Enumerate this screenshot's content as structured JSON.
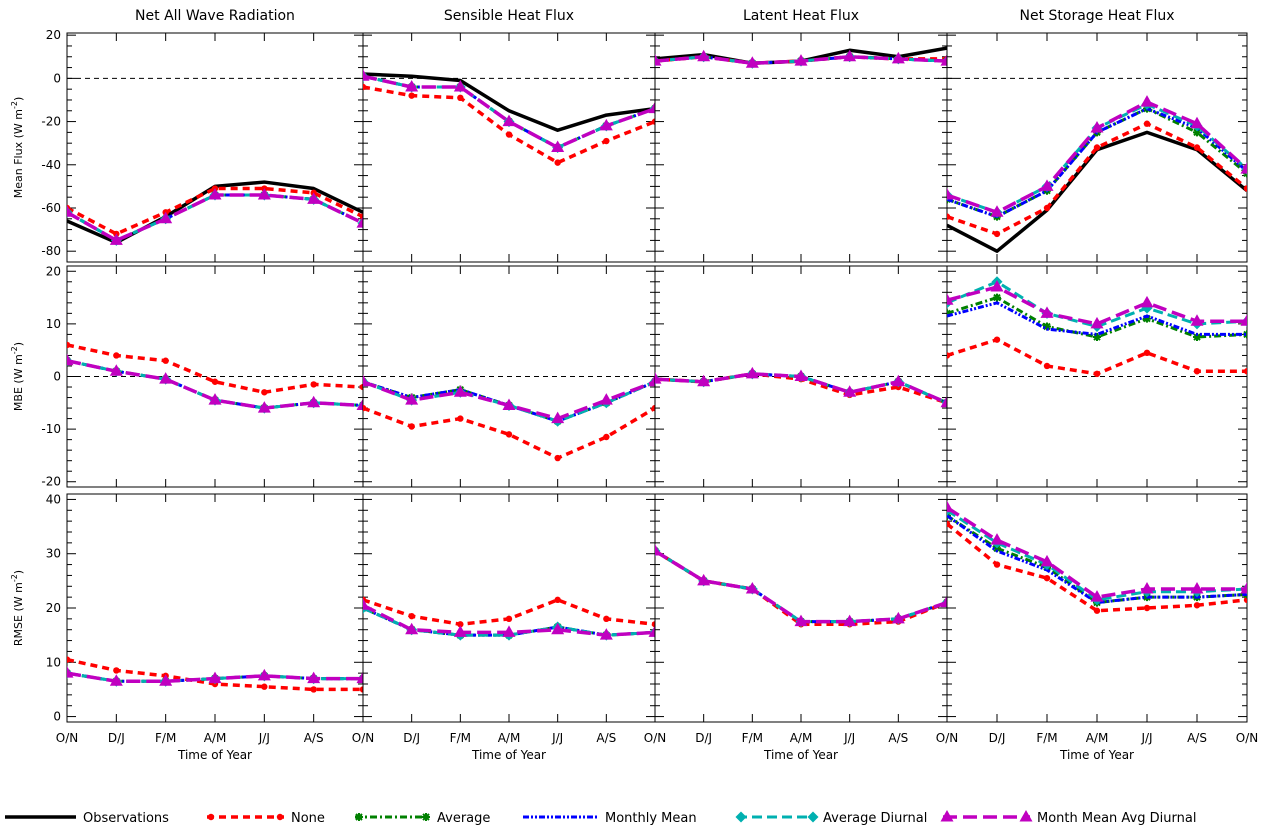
{
  "columns": [
    "Net All Wave Radiation",
    "Sensible Heat Flux",
    "Latent Heat Flux",
    "Net Storage Heat Flux"
  ],
  "rows": [
    {
      "ylabel_main": "Mean Flux (W m",
      "ylabel_sup": "-2",
      "ylabel_tail": ")",
      "ylim": [
        -85,
        21
      ],
      "yticks": [
        20,
        0,
        -20,
        -40,
        -60,
        -80
      ],
      "zero_line": true
    },
    {
      "ylabel_main": "MBE (W m",
      "ylabel_sup": "-2",
      "ylabel_tail": ")",
      "ylim": [
        -21,
        21
      ],
      "yticks": [
        20,
        10,
        0,
        -10,
        -20
      ],
      "zero_line": true
    },
    {
      "ylabel_main": "RMSE (W m",
      "ylabel_sup": "-2",
      "ylabel_tail": ")",
      "ylim": [
        -1,
        41
      ],
      "yticks": [
        40,
        30,
        20,
        10,
        0
      ],
      "zero_line": false
    }
  ],
  "xticks": [
    "O/N",
    "D/J",
    "F/M",
    "A/M",
    "J/J",
    "A/S",
    "O/N"
  ],
  "xlabel": "Time of Year",
  "legend": [
    {
      "key": "obs",
      "label": "Observations",
      "color": "#000000",
      "dash": "",
      "marker": "none",
      "width": 3.5
    },
    {
      "key": "none",
      "label": "None",
      "color": "#ff0000",
      "dash": "7,5",
      "marker": "circle",
      "width": 3.5
    },
    {
      "key": "avg",
      "label": "Average",
      "color": "#008000",
      "dash": "7,3,2,3",
      "marker": "star",
      "width": 3
    },
    {
      "key": "mm",
      "label": "Monthly Mean",
      "color": "#0000ff",
      "dash": "6,2,2,2,2,2",
      "marker": "none",
      "width": 3
    },
    {
      "key": "ad",
      "label": "Average Diurnal",
      "color": "#00b0b0",
      "dash": "10,5",
      "marker": "diamond",
      "width": 3
    },
    {
      "key": "mmad",
      "label": "Month Mean Avg Diurnal",
      "color": "#c000c0",
      "dash": "14,6",
      "marker": "triangle",
      "width": 3.5
    }
  ],
  "chart_data": {
    "type": "line",
    "x": [
      "O/N",
      "D/J",
      "F/M",
      "A/M",
      "J/J",
      "A/S",
      "O/N"
    ],
    "xlabel": "Time of Year",
    "series_names": [
      "Observations",
      "None",
      "Average",
      "Monthly Mean",
      "Average Diurnal",
      "Month Mean Avg Diurnal"
    ],
    "panels": [
      {
        "row": 0,
        "col": 0,
        "title": "Net All Wave Radiation",
        "ylabel": "Mean Flux (W m-2)",
        "ylim": [
          -85,
          21
        ],
        "series": {
          "obs": [
            -66,
            -76,
            -64,
            -50,
            -48,
            -51,
            -62
          ],
          "none": [
            -60,
            -72,
            -62,
            -51,
            -51,
            -53,
            -64
          ],
          "avg": [
            -62,
            -75,
            -65,
            -54,
            -54,
            -56,
            -67
          ],
          "mm": [
            -62,
            -75,
            -65,
            -54,
            -54,
            -56,
            -67
          ],
          "ad": [
            -62,
            -75,
            -65,
            -54,
            -54,
            -56,
            -67
          ],
          "mmad": [
            -62,
            -75,
            -65,
            -54,
            -54,
            -56,
            -67
          ]
        }
      },
      {
        "row": 0,
        "col": 1,
        "title": "Sensible Heat Flux",
        "ylabel": "Mean Flux (W m-2)",
        "ylim": [
          -85,
          21
        ],
        "series": {
          "obs": [
            2,
            1,
            -1,
            -15,
            -24,
            -17,
            -14
          ],
          "none": [
            -4,
            -8,
            -9,
            -26,
            -39,
            -29,
            -20
          ],
          "avg": [
            1,
            -4,
            -4,
            -20,
            -32,
            -22,
            -14
          ],
          "mm": [
            1,
            -4,
            -4,
            -20,
            -32,
            -22,
            -14
          ],
          "ad": [
            1,
            -4,
            -4,
            -20,
            -32,
            -22,
            -14
          ],
          "mmad": [
            1,
            -4,
            -4,
            -20,
            -32,
            -22,
            -14
          ]
        }
      },
      {
        "row": 0,
        "col": 2,
        "title": "Latent Heat Flux",
        "ylabel": "Mean Flux (W m-2)",
        "ylim": [
          -85,
          21
        ],
        "series": {
          "obs": [
            9,
            11,
            7,
            8,
            13,
            10,
            14
          ],
          "none": [
            8,
            10,
            7,
            8,
            10,
            9,
            9
          ],
          "avg": [
            8,
            10,
            7,
            8,
            10,
            9,
            8
          ],
          "mm": [
            8,
            10,
            7,
            8,
            10,
            9,
            8
          ],
          "ad": [
            8,
            10,
            7,
            8,
            10,
            9,
            8
          ],
          "mmad": [
            8,
            10,
            7,
            8,
            10,
            9,
            8
          ]
        }
      },
      {
        "row": 0,
        "col": 3,
        "title": "Net Storage Heat Flux",
        "ylabel": "Mean Flux (W m-2)",
        "ylim": [
          -85,
          21
        ],
        "series": {
          "obs": [
            -68,
            -80,
            -61,
            -33,
            -25,
            -33,
            -52
          ],
          "none": [
            -64,
            -72,
            -60,
            -32,
            -21,
            -32,
            -51
          ],
          "avg": [
            -56,
            -64,
            -52,
            -25,
            -14,
            -25,
            -44
          ],
          "mm": [
            -56,
            -64,
            -52,
            -25,
            -14,
            -23,
            -43
          ],
          "ad": [
            -54,
            -62,
            -50,
            -23,
            -12,
            -22,
            -42
          ],
          "mmad": [
            -54,
            -62,
            -50,
            -23,
            -11,
            -21,
            -42
          ]
        }
      },
      {
        "row": 1,
        "col": 0,
        "title": "Net All Wave Radiation",
        "ylabel": "MBE (W m-2)",
        "ylim": [
          -21,
          21
        ],
        "series": {
          "none": [
            6,
            4,
            3,
            -1,
            -3,
            -1.5,
            -2
          ],
          "avg": [
            3,
            1,
            -0.5,
            -4.5,
            -6,
            -5,
            -5.5
          ],
          "mm": [
            3,
            1,
            -0.5,
            -4.5,
            -6,
            -5,
            -5.5
          ],
          "ad": [
            3,
            1,
            -0.5,
            -4.5,
            -6,
            -5,
            -5.5
          ],
          "mmad": [
            3,
            1,
            -0.5,
            -4.5,
            -6,
            -5,
            -5.5
          ]
        }
      },
      {
        "row": 1,
        "col": 1,
        "title": "Sensible Heat Flux",
        "ylabel": "MBE (W m-2)",
        "ylim": [
          -21,
          21
        ],
        "series": {
          "none": [
            -6,
            -9.5,
            -8,
            -11,
            -15.5,
            -11.5,
            -6
          ],
          "avg": [
            -1,
            -4,
            -2.5,
            -5.5,
            -8.5,
            -5,
            -1
          ],
          "mm": [
            -1,
            -4,
            -2.5,
            -5.5,
            -8.5,
            -5,
            -1
          ],
          "ad": [
            -1,
            -4.5,
            -3,
            -5.5,
            -8.5,
            -5,
            -1
          ],
          "mmad": [
            -1,
            -4.5,
            -3,
            -5.5,
            -8,
            -4.5,
            -1
          ]
        }
      },
      {
        "row": 1,
        "col": 2,
        "title": "Latent Heat Flux",
        "ylabel": "MBE (W m-2)",
        "ylim": [
          -21,
          21
        ],
        "series": {
          "none": [
            -0.5,
            -1,
            0.5,
            -0.5,
            -3.5,
            -2,
            -5
          ],
          "avg": [
            -0.5,
            -1,
            0.5,
            0,
            -3,
            -1,
            -5
          ],
          "mm": [
            -0.5,
            -1,
            0.5,
            0,
            -3,
            -1,
            -5
          ],
          "ad": [
            -0.5,
            -1,
            0.5,
            0,
            -3,
            -1,
            -5
          ],
          "mmad": [
            -0.5,
            -1,
            0.5,
            0,
            -3,
            -1,
            -5
          ]
        }
      },
      {
        "row": 1,
        "col": 3,
        "title": "Net Storage Heat Flux",
        "ylabel": "MBE (W m-2)",
        "ylim": [
          -21,
          21
        ],
        "series": {
          "none": [
            4,
            7,
            2,
            0.5,
            4.5,
            1,
            1
          ],
          "avg": [
            12,
            15,
            9.5,
            7.5,
            11,
            7.5,
            8
          ],
          "mm": [
            11.5,
            14,
            9,
            8,
            11.5,
            8,
            8
          ],
          "ad": [
            14,
            18,
            12,
            9.5,
            13,
            10,
            10.5
          ],
          "mmad": [
            14.5,
            17,
            12,
            10,
            14,
            10.5,
            10.5
          ]
        }
      },
      {
        "row": 2,
        "col": 0,
        "title": "Net All Wave Radiation",
        "ylabel": "RMSE (W m-2)",
        "ylim": [
          -1,
          41
        ],
        "series": {
          "none": [
            10.5,
            8.5,
            7.5,
            6,
            5.5,
            5,
            5
          ],
          "avg": [
            8,
            6.5,
            6.5,
            7,
            7.5,
            7,
            7
          ],
          "mm": [
            8,
            6.5,
            6.5,
            7,
            7.5,
            7,
            7
          ],
          "ad": [
            8,
            6.5,
            6.5,
            7,
            7.5,
            7,
            7
          ],
          "mmad": [
            8,
            6.5,
            6.5,
            7,
            7.5,
            7,
            7
          ]
        }
      },
      {
        "row": 2,
        "col": 1,
        "title": "Sensible Heat Flux",
        "ylabel": "RMSE (W m-2)",
        "ylim": [
          -1,
          41
        ],
        "series": {
          "none": [
            21.5,
            18.5,
            17,
            18,
            21.5,
            18,
            17
          ],
          "avg": [
            20,
            16,
            15,
            15,
            16.5,
            15,
            15.5
          ],
          "mm": [
            20,
            16,
            15,
            15,
            16.5,
            15,
            15.5
          ],
          "ad": [
            20,
            16,
            15,
            15,
            16.5,
            15,
            15.5
          ],
          "mmad": [
            20.5,
            16,
            15.5,
            15.5,
            16,
            15,
            15.5
          ]
        }
      },
      {
        "row": 2,
        "col": 2,
        "title": "Latent Heat Flux",
        "ylabel": "RMSE (W m-2)",
        "ylim": [
          -1,
          41
        ],
        "series": {
          "none": [
            30.5,
            25,
            23.5,
            17,
            17,
            17.5,
            21
          ],
          "avg": [
            30.5,
            25,
            23.5,
            17.5,
            17.5,
            18,
            21
          ],
          "mm": [
            30.5,
            25,
            23.5,
            17.5,
            17.5,
            18,
            21
          ],
          "ad": [
            30.5,
            25,
            23.5,
            17.5,
            17.5,
            18,
            21
          ],
          "mmad": [
            30.5,
            25,
            23.5,
            17.5,
            17.5,
            18,
            21
          ]
        }
      },
      {
        "row": 2,
        "col": 3,
        "title": "Net Storage Heat Flux",
        "ylabel": "RMSE (W m-2)",
        "ylim": [
          -1,
          41
        ],
        "series": {
          "none": [
            35.5,
            28,
            25.5,
            19.5,
            20,
            20.5,
            21.5
          ],
          "avg": [
            37,
            31,
            27.5,
            21,
            22,
            22,
            22.5
          ],
          "mm": [
            37,
            30.5,
            27,
            21,
            22,
            22,
            22.5
          ],
          "ad": [
            38,
            32,
            28,
            21.5,
            23,
            23,
            23.5
          ],
          "mmad": [
            38.5,
            32.5,
            28.5,
            22,
            23.5,
            23.5,
            23.5
          ]
        }
      }
    ]
  }
}
